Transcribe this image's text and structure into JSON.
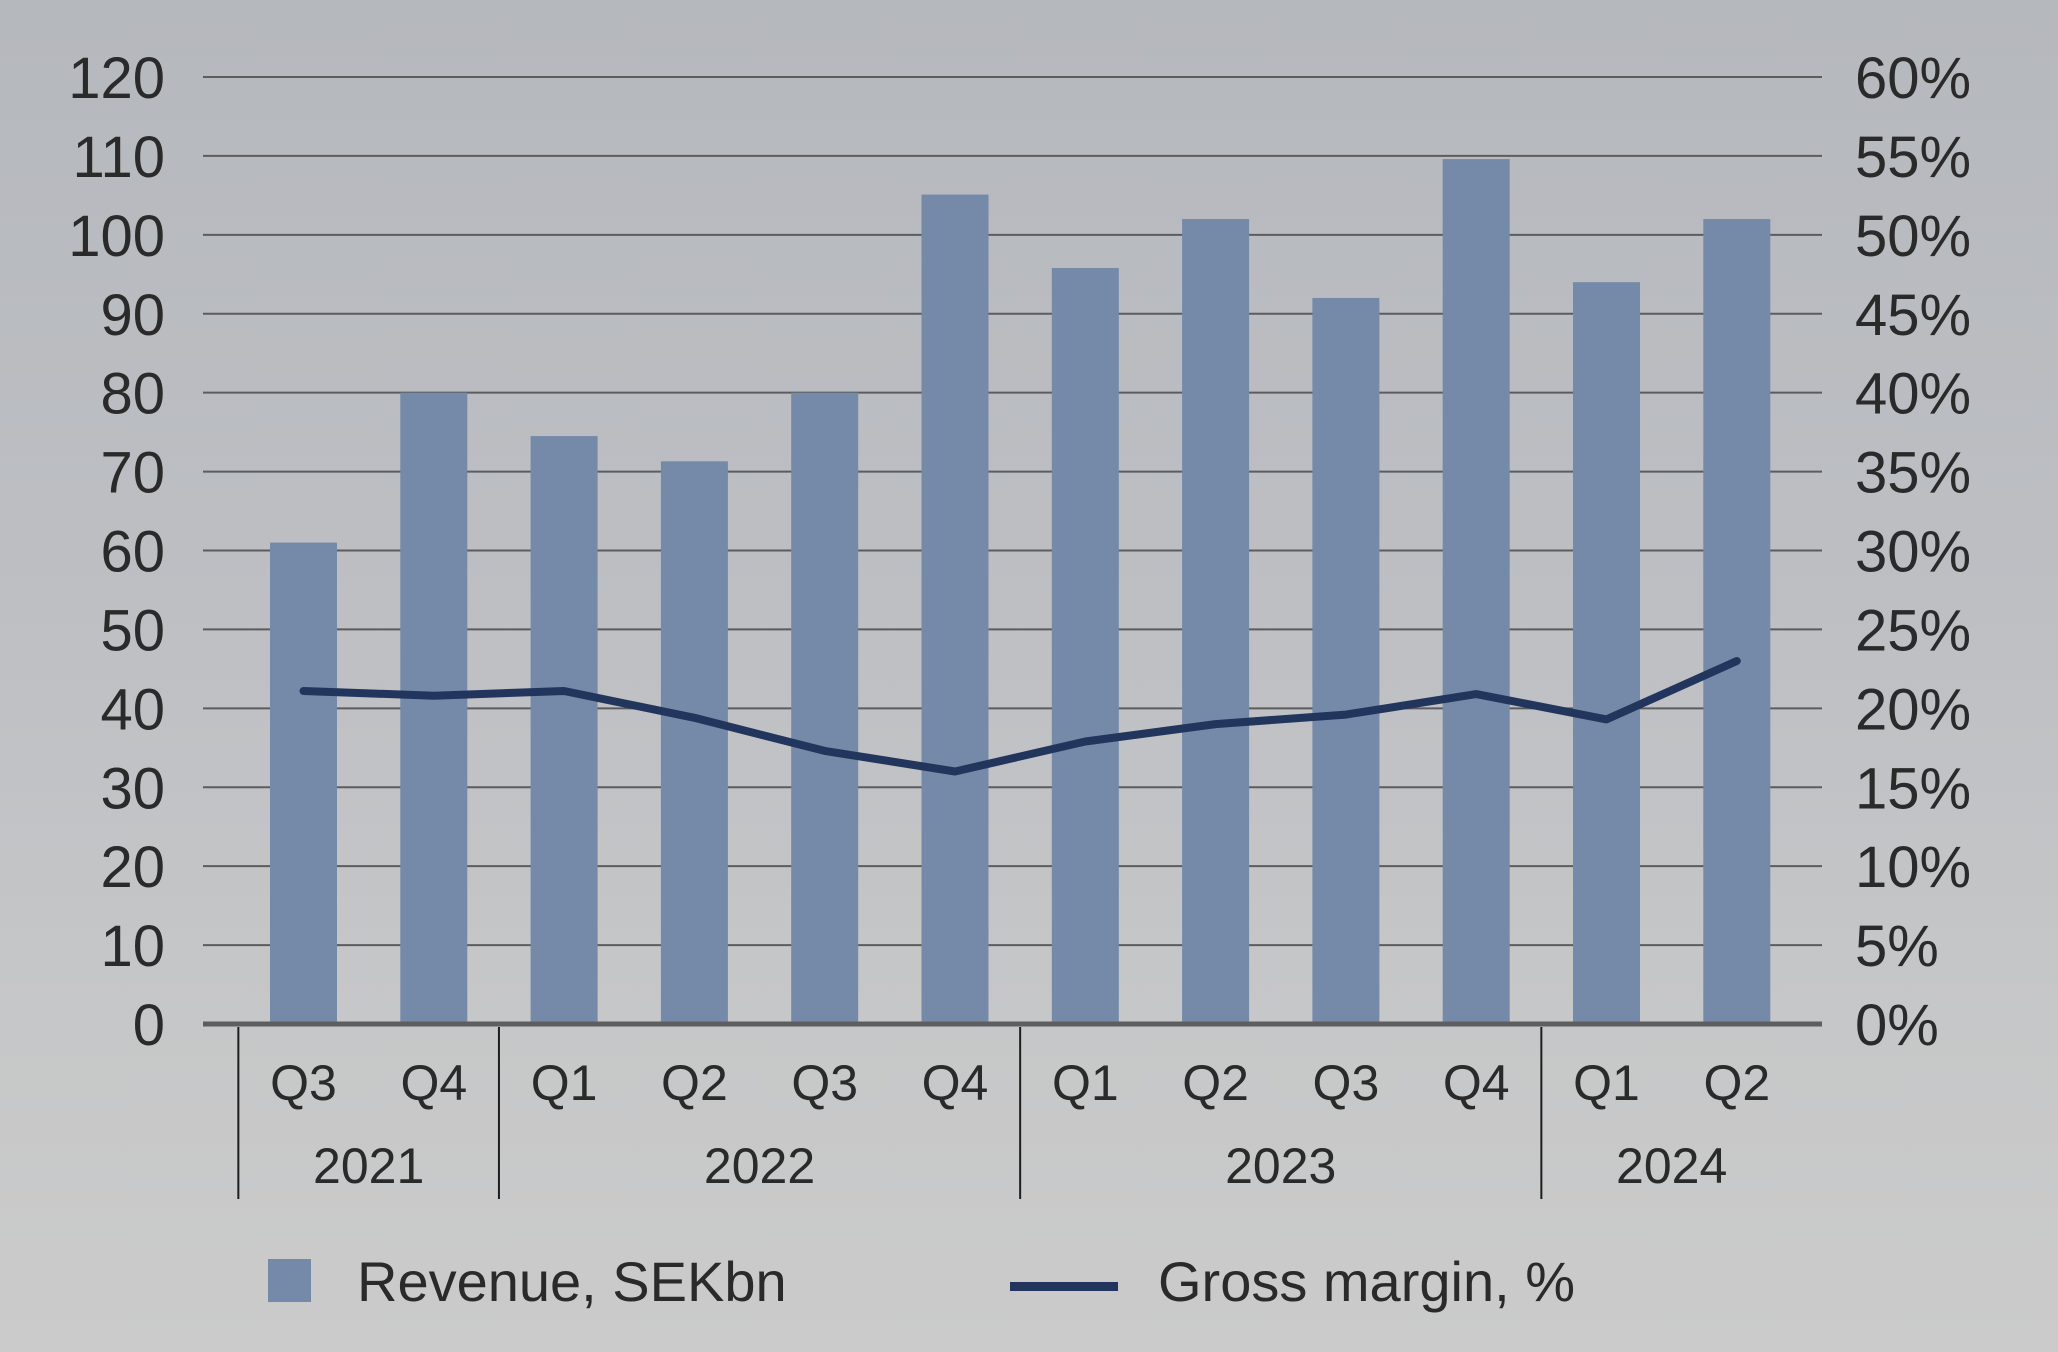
{
  "chart_data": {
    "type": "bar",
    "title": "",
    "xlabel": "",
    "ylabel": "",
    "categories": [
      "Q3",
      "Q4",
      "Q1",
      "Q2",
      "Q3",
      "Q4",
      "Q1",
      "Q2",
      "Q3",
      "Q4",
      "Q1",
      "Q2"
    ],
    "groups": [
      {
        "label": "2021",
        "count": 2
      },
      {
        "label": "2022",
        "count": 4
      },
      {
        "label": "2023",
        "count": 4
      },
      {
        "label": "2024",
        "count": 2
      }
    ],
    "series": [
      {
        "name": "Revenue, SEKbn",
        "type": "bar",
        "axis": "left",
        "color": "#7589a9",
        "values": [
          61,
          80,
          74.5,
          71.3,
          80,
          105.1,
          95.8,
          102,
          92,
          109.6,
          94,
          102
        ]
      },
      {
        "name": "Gross margin, %",
        "type": "line",
        "axis": "right",
        "color": "#22355c",
        "values": [
          21.1,
          20.8,
          21.1,
          19.4,
          17.3,
          16.0,
          17.9,
          19.0,
          19.6,
          20.9,
          19.3,
          23.0
        ]
      }
    ],
    "y_left": {
      "range": [
        0,
        120
      ],
      "ticks": [
        "0",
        "10",
        "20",
        "30",
        "40",
        "50",
        "60",
        "70",
        "80",
        "90",
        "100",
        "110",
        "120"
      ]
    },
    "y_right": {
      "range": [
        0,
        60
      ],
      "ticks": [
        "0%",
        "5%",
        "10%",
        "15%",
        "20%",
        "25%",
        "30%",
        "35%",
        "40%",
        "45%",
        "50%",
        "55%",
        "60%"
      ]
    },
    "grid": true,
    "legend": {
      "position": "bottom",
      "items": [
        {
          "label": "Revenue, SEKbn",
          "symbol": "square",
          "color": "#7589a9"
        },
        {
          "label": "Gross margin, %",
          "symbol": "line",
          "color": "#22355c"
        }
      ]
    }
  }
}
